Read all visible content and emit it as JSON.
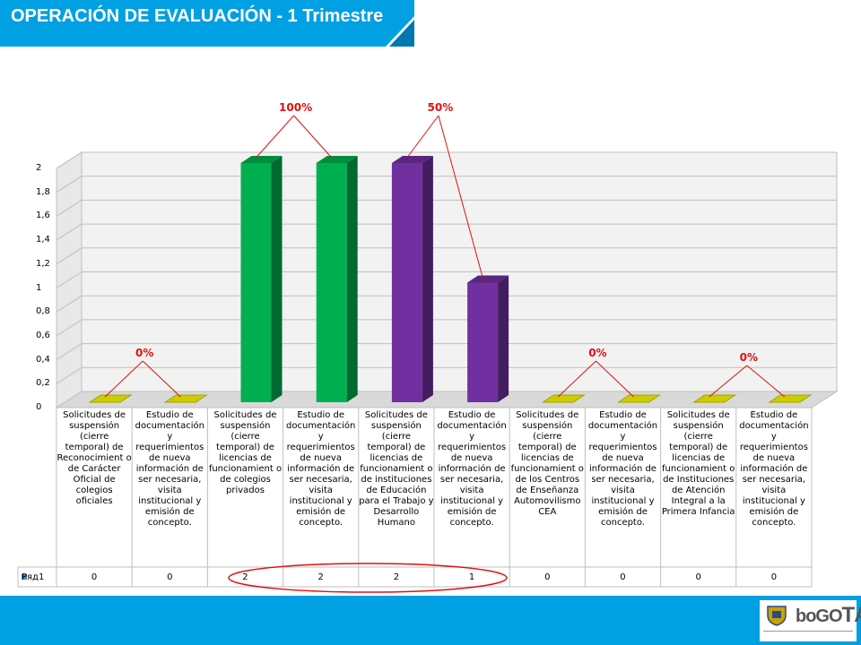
{
  "header": {
    "title": "OPERACIÓN DE EVALUACIÓN - 1 Trimestre"
  },
  "colors": {
    "banner": "#00a0e3",
    "green": "#00b050",
    "purple": "#7030a0",
    "zero": "#cccc00",
    "annotation": "#e01010"
  },
  "chart_data": {
    "type": "bar",
    "categories": [
      "Solicitudes de suspensión (cierre temporal) de Reconocimient o de Carácter Oficial de colegios oficiales",
      "Estudio de documentación y requerimientos de nueva información de ser necesaria, visita institucional y emisión de concepto.",
      "Solicitudes de suspensión (cierre temporal) de licencias de funcionamient o de colegios privados",
      "Estudio de documentación y requerimientos de nueva información de ser necesaria, visita institucional y emisión de concepto.",
      "Solicitudes de suspensión (cierre temporal) de licencias de funcionamient o de instituciones de Educación para el Trabajo y Desarrollo Humano",
      "Estudio de documentación y requerimientos de nueva información de ser necesaria, visita institucional y emisión de concepto.",
      "Solicitudes de suspensión (cierre temporal) de licencias de funcionamient o de los Centros de Enseñanza Automovilismo CEA",
      "Estudio de documentación y requerimientos de nueva información de ser necesaria, visita institucional y emisión de concepto.",
      "Solicitudes de suspensión (cierre temporal) de licencias de funcionamient o de Instituciones de Atención Integral a la Primera Infancia",
      "Estudio de documentación y requerimientos de nueva información de ser necesaria, visita institucional y emisión de concepto."
    ],
    "series": [
      {
        "name": "Ряд1",
        "values": [
          0,
          0,
          2,
          2,
          2,
          1,
          0,
          0,
          0,
          0
        ]
      }
    ],
    "value_labels": [
      "0",
      "0",
      "2",
      "2",
      "2",
      "1",
      "0",
      "0",
      "0",
      "0"
    ],
    "bar_colors": [
      "#cccc00",
      "#cccc00",
      "#00b050",
      "#00b050",
      "#7030a0",
      "#7030a0",
      "#cccc00",
      "#cccc00",
      "#cccc00",
      "#cccc00"
    ],
    "yticks": [
      "0",
      "0,2",
      "0,4",
      "0,6",
      "0,8",
      "1",
      "1,2",
      "1,4",
      "1,6",
      "1,8",
      "2"
    ],
    "ylim": [
      0,
      2
    ],
    "annotations": [
      {
        "text": "0%",
        "pair": [
          0,
          1
        ]
      },
      {
        "text": "100%",
        "pair": [
          2,
          3
        ]
      },
      {
        "text": "50%",
        "pair": [
          4,
          5
        ]
      },
      {
        "text": "0%",
        "pair": [
          6,
          7
        ]
      },
      {
        "text": "0%",
        "pair": [
          8,
          9
        ]
      }
    ],
    "legend": "bottom-table",
    "grid": true
  }
}
